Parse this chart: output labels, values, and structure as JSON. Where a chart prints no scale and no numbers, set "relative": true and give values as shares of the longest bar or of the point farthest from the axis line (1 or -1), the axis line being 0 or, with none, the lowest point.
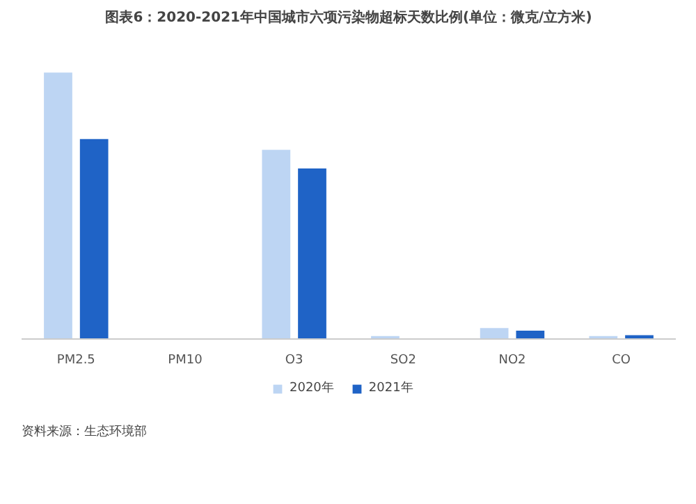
{
  "chart_data": {
    "type": "bar",
    "title": "图表6：2020-2021年中国城市六项污染物超标天数比例(单位：微克/立方米)",
    "categories": [
      "PM2.5",
      "PM10",
      "O3",
      "SO2",
      "NO2",
      "CO"
    ],
    "relative": true,
    "legend": "bottom",
    "series": [
      {
        "name": "2020年",
        "color": "#bdd5f3",
        "values": [
          1,
          null,
          0.71,
          0.01,
          0.04,
          0.01
        ]
      },
      {
        "name": "2021年",
        "color": "#1f63c6",
        "values": [
          0.75,
          null,
          0.64,
          0,
          0.03,
          0.013
        ]
      }
    ],
    "annotations": [
      "资料来源：生态环境部"
    ]
  }
}
